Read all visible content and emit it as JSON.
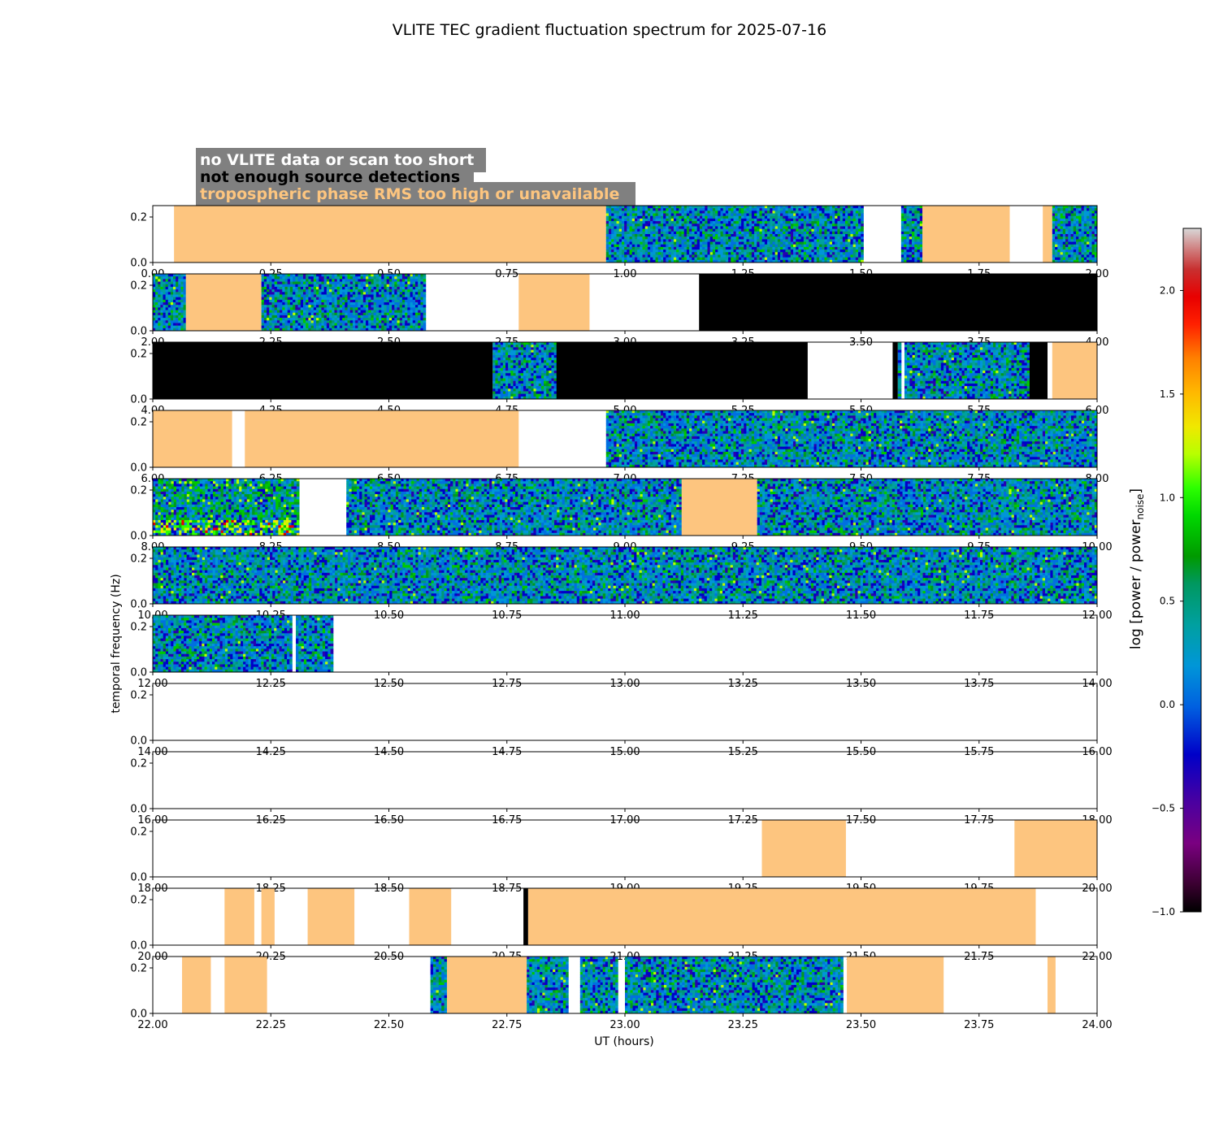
{
  "chart_data": {
    "type": "heatmap",
    "title": "VLITE TEC gradient fluctuation spectrum for 2025-07-16",
    "xlabel": "UT (hours)",
    "ylabel": "temporal frequency (Hz)",
    "colorbar": {
      "label_main": "log [power / power",
      "label_sub": "noise",
      "label_end": "]",
      "range": [
        -1.0,
        2.3
      ],
      "ticks": [
        "-1.0",
        "-0.5",
        "0.0",
        "0.5",
        "1.0",
        "1.5",
        "2.0"
      ],
      "tick_values": [
        -1.0,
        -0.5,
        0.0,
        0.5,
        1.0,
        1.5,
        2.0
      ]
    },
    "legend": [
      {
        "label": "no VLITE data or scan too short",
        "color": "#ffffff"
      },
      {
        "label": "not enough source detections",
        "color": "#000000"
      },
      {
        "label": "tropospheric phase RMS too high or unavailable",
        "color": "#fdc57f"
      }
    ],
    "legend_box_color": "#808080",
    "trop_color": "#fdc57f",
    "ylim": [
      0.0,
      0.25
    ],
    "yticks": [
      "0.0",
      "0.2"
    ],
    "ytick_values": [
      0.0,
      0.2
    ],
    "panels": [
      {
        "xlim": [
          0.0,
          2.0
        ],
        "xticks": [
          "0.00",
          "0.25",
          "0.50",
          "0.75",
          "1.00",
          "1.25",
          "1.50",
          "1.75",
          "2.00"
        ],
        "segments": [
          {
            "start": 0.045,
            "end": 0.96,
            "kind": "trop"
          },
          {
            "start": 0.96,
            "end": 1.505,
            "kind": "spectrum"
          },
          {
            "start": 1.585,
            "end": 1.63,
            "kind": "spectrum"
          },
          {
            "start": 1.63,
            "end": 1.815,
            "kind": "trop"
          },
          {
            "start": 1.885,
            "end": 1.905,
            "kind": "trop"
          },
          {
            "start": 1.905,
            "end": 2.0,
            "kind": "spectrum"
          }
        ]
      },
      {
        "xlim": [
          2.0,
          4.0
        ],
        "xticks": [
          "2.00",
          "2.25",
          "2.50",
          "2.75",
          "3.00",
          "3.25",
          "3.50",
          "3.75",
          "4.00"
        ],
        "segments": [
          {
            "start": 2.0,
            "end": 2.07,
            "kind": "spectrum"
          },
          {
            "start": 2.07,
            "end": 2.23,
            "kind": "trop"
          },
          {
            "start": 2.23,
            "end": 2.578,
            "kind": "spectrum"
          },
          {
            "start": 2.775,
            "end": 2.925,
            "kind": "trop"
          },
          {
            "start": 3.157,
            "end": 4.0,
            "kind": "nodet"
          }
        ]
      },
      {
        "xlim": [
          4.0,
          6.0
        ],
        "xticks": [
          "4.00",
          "4.25",
          "4.50",
          "4.75",
          "5.00",
          "5.25",
          "5.50",
          "5.75",
          "6.00"
        ],
        "segments": [
          {
            "start": 4.0,
            "end": 4.72,
            "kind": "nodet"
          },
          {
            "start": 4.72,
            "end": 4.855,
            "kind": "spectrum"
          },
          {
            "start": 4.855,
            "end": 5.387,
            "kind": "nodet"
          },
          {
            "start": 5.567,
            "end": 5.578,
            "kind": "nodet"
          },
          {
            "start": 5.578,
            "end": 5.585,
            "kind": "spectrum"
          },
          {
            "start": 5.592,
            "end": 5.857,
            "kind": "spectrum"
          },
          {
            "start": 5.857,
            "end": 5.895,
            "kind": "nodet"
          },
          {
            "start": 5.905,
            "end": 6.0,
            "kind": "trop"
          }
        ]
      },
      {
        "xlim": [
          6.0,
          8.0
        ],
        "xticks": [
          "6.00",
          "6.25",
          "6.50",
          "6.75",
          "7.00",
          "7.25",
          "7.50",
          "7.75",
          "8.00"
        ],
        "segments": [
          {
            "start": 6.0,
            "end": 6.168,
            "kind": "trop"
          },
          {
            "start": 6.195,
            "end": 6.775,
            "kind": "trop"
          },
          {
            "start": 6.96,
            "end": 8.0,
            "kind": "spectrum"
          }
        ]
      },
      {
        "xlim": [
          8.0,
          10.0
        ],
        "xticks": [
          "8.00",
          "8.25",
          "8.50",
          "8.75",
          "9.00",
          "9.25",
          "9.50",
          "9.75",
          "10.00"
        ],
        "segments": [
          {
            "start": 8.0,
            "end": 8.31,
            "kind": "spectrum",
            "hot": true
          },
          {
            "start": 8.41,
            "end": 9.12,
            "kind": "spectrum"
          },
          {
            "start": 9.12,
            "end": 9.28,
            "kind": "trop"
          },
          {
            "start": 9.28,
            "end": 10.0,
            "kind": "spectrum"
          }
        ]
      },
      {
        "xlim": [
          10.0,
          12.0
        ],
        "xticks": [
          "10.00",
          "10.25",
          "10.50",
          "10.75",
          "11.00",
          "11.25",
          "11.50",
          "11.75",
          "12.00"
        ],
        "segments": [
          {
            "start": 10.0,
            "end": 12.0,
            "kind": "spectrum"
          }
        ]
      },
      {
        "xlim": [
          12.0,
          14.0
        ],
        "xticks": [
          "12.00",
          "12.25",
          "12.50",
          "12.75",
          "13.00",
          "13.25",
          "13.50",
          "13.75",
          "14.00"
        ],
        "segments": [
          {
            "start": 12.0,
            "end": 12.295,
            "kind": "spectrum"
          },
          {
            "start": 12.303,
            "end": 12.382,
            "kind": "spectrum"
          }
        ]
      },
      {
        "xlim": [
          14.0,
          16.0
        ],
        "xticks": [
          "14.00",
          "14.25",
          "14.50",
          "14.75",
          "15.00",
          "15.25",
          "15.50",
          "15.75",
          "16.00"
        ],
        "segments": []
      },
      {
        "xlim": [
          16.0,
          18.0
        ],
        "xticks": [
          "16.00",
          "16.25",
          "16.50",
          "16.75",
          "17.00",
          "17.25",
          "17.50",
          "17.75",
          "18.00"
        ],
        "segments": []
      },
      {
        "xlim": [
          18.0,
          20.0
        ],
        "xticks": [
          "18.00",
          "18.25",
          "18.50",
          "18.75",
          "19.00",
          "19.25",
          "19.50",
          "19.75",
          "20.00"
        ],
        "segments": [
          {
            "start": 19.29,
            "end": 19.468,
            "kind": "trop"
          },
          {
            "start": 19.825,
            "end": 20.0,
            "kind": "trop"
          }
        ]
      },
      {
        "xlim": [
          20.0,
          22.0
        ],
        "xticks": [
          "20.00",
          "20.25",
          "20.50",
          "20.75",
          "21.00",
          "21.25",
          "21.50",
          "21.75",
          "22.00"
        ],
        "segments": [
          {
            "start": 20.152,
            "end": 20.215,
            "kind": "trop"
          },
          {
            "start": 20.23,
            "end": 20.258,
            "kind": "trop"
          },
          {
            "start": 20.328,
            "end": 20.427,
            "kind": "trop"
          },
          {
            "start": 20.543,
            "end": 20.632,
            "kind": "trop"
          },
          {
            "start": 20.785,
            "end": 20.795,
            "kind": "nodet"
          },
          {
            "start": 20.795,
            "end": 21.87,
            "kind": "trop"
          }
        ]
      },
      {
        "xlim": [
          22.0,
          24.0
        ],
        "xticks": [
          "22.00",
          "22.25",
          "22.50",
          "22.75",
          "23.00",
          "23.25",
          "23.50",
          "23.75",
          "24.00"
        ],
        "segments": [
          {
            "start": 22.062,
            "end": 22.123,
            "kind": "trop"
          },
          {
            "start": 22.152,
            "end": 22.242,
            "kind": "trop"
          },
          {
            "start": 22.588,
            "end": 22.623,
            "kind": "spectrum"
          },
          {
            "start": 22.623,
            "end": 22.792,
            "kind": "trop"
          },
          {
            "start": 22.792,
            "end": 22.88,
            "kind": "spectrum"
          },
          {
            "start": 22.905,
            "end": 22.985,
            "kind": "spectrum"
          },
          {
            "start": 23.0,
            "end": 23.462,
            "kind": "spectrum"
          },
          {
            "start": 23.47,
            "end": 23.675,
            "kind": "trop"
          },
          {
            "start": 23.895,
            "end": 23.912,
            "kind": "trop"
          }
        ]
      }
    ]
  }
}
